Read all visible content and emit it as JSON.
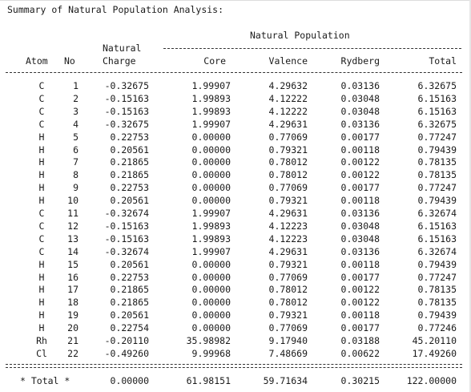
{
  "title": "Summary of Natural Population Analysis:",
  "header": {
    "natural_population": "Natural Population",
    "natural": "Natural",
    "atom": "Atom",
    "no": "No",
    "charge": "Charge",
    "core": "Core",
    "valence": "Valence",
    "rydberg": "Rydberg",
    "total": "Total"
  },
  "rows": [
    {
      "atom": "C",
      "no": "1",
      "charge": "-0.32675",
      "core": "1.99907",
      "valence": "4.29632",
      "rydberg": "0.03136",
      "total": "6.32675"
    },
    {
      "atom": "C",
      "no": "2",
      "charge": "-0.15163",
      "core": "1.99893",
      "valence": "4.12222",
      "rydberg": "0.03048",
      "total": "6.15163"
    },
    {
      "atom": "C",
      "no": "3",
      "charge": "-0.15163",
      "core": "1.99893",
      "valence": "4.12222",
      "rydberg": "0.03048",
      "total": "6.15163"
    },
    {
      "atom": "C",
      "no": "4",
      "charge": "-0.32675",
      "core": "1.99907",
      "valence": "4.29631",
      "rydberg": "0.03136",
      "total": "6.32675"
    },
    {
      "atom": "H",
      "no": "5",
      "charge": "0.22753",
      "core": "0.00000",
      "valence": "0.77069",
      "rydberg": "0.00177",
      "total": "0.77247"
    },
    {
      "atom": "H",
      "no": "6",
      "charge": "0.20561",
      "core": "0.00000",
      "valence": "0.79321",
      "rydberg": "0.00118",
      "total": "0.79439"
    },
    {
      "atom": "H",
      "no": "7",
      "charge": "0.21865",
      "core": "0.00000",
      "valence": "0.78012",
      "rydberg": "0.00122",
      "total": "0.78135"
    },
    {
      "atom": "H",
      "no": "8",
      "charge": "0.21865",
      "core": "0.00000",
      "valence": "0.78012",
      "rydberg": "0.00122",
      "total": "0.78135"
    },
    {
      "atom": "H",
      "no": "9",
      "charge": "0.22753",
      "core": "0.00000",
      "valence": "0.77069",
      "rydberg": "0.00177",
      "total": "0.77247"
    },
    {
      "atom": "H",
      "no": "10",
      "charge": "0.20561",
      "core": "0.00000",
      "valence": "0.79321",
      "rydberg": "0.00118",
      "total": "0.79439"
    },
    {
      "atom": "C",
      "no": "11",
      "charge": "-0.32674",
      "core": "1.99907",
      "valence": "4.29631",
      "rydberg": "0.03136",
      "total": "6.32674"
    },
    {
      "atom": "C",
      "no": "12",
      "charge": "-0.15163",
      "core": "1.99893",
      "valence": "4.12223",
      "rydberg": "0.03048",
      "total": "6.15163"
    },
    {
      "atom": "C",
      "no": "13",
      "charge": "-0.15163",
      "core": "1.99893",
      "valence": "4.12223",
      "rydberg": "0.03048",
      "total": "6.15163"
    },
    {
      "atom": "C",
      "no": "14",
      "charge": "-0.32674",
      "core": "1.99907",
      "valence": "4.29631",
      "rydberg": "0.03136",
      "total": "6.32674"
    },
    {
      "atom": "H",
      "no": "15",
      "charge": "0.20561",
      "core": "0.00000",
      "valence": "0.79321",
      "rydberg": "0.00118",
      "total": "0.79439"
    },
    {
      "atom": "H",
      "no": "16",
      "charge": "0.22753",
      "core": "0.00000",
      "valence": "0.77069",
      "rydberg": "0.00177",
      "total": "0.77247"
    },
    {
      "atom": "H",
      "no": "17",
      "charge": "0.21865",
      "core": "0.00000",
      "valence": "0.78012",
      "rydberg": "0.00122",
      "total": "0.78135"
    },
    {
      "atom": "H",
      "no": "18",
      "charge": "0.21865",
      "core": "0.00000",
      "valence": "0.78012",
      "rydberg": "0.00122",
      "total": "0.78135"
    },
    {
      "atom": "H",
      "no": "19",
      "charge": "0.20561",
      "core": "0.00000",
      "valence": "0.79321",
      "rydberg": "0.00118",
      "total": "0.79439"
    },
    {
      "atom": "H",
      "no": "20",
      "charge": "0.22754",
      "core": "0.00000",
      "valence": "0.77069",
      "rydberg": "0.00177",
      "total": "0.77246"
    },
    {
      "atom": "Rh",
      "no": "21",
      "charge": "-0.20110",
      "core": "35.98982",
      "valence": "9.17940",
      "rydberg": "0.03188",
      "total": "45.20110"
    },
    {
      "atom": "Cl",
      "no": "22",
      "charge": "-0.49260",
      "core": "9.99968",
      "valence": "7.48669",
      "rydberg": "0.00622",
      "total": "17.49260"
    }
  ],
  "total_row": {
    "label": "* Total *",
    "charge": "0.00000",
    "core": "61.98151",
    "valence": "59.71634",
    "rydberg": "0.30215",
    "total": "122.00000"
  },
  "colors": {
    "background": "#ffffff",
    "text": "#1a1a1a"
  }
}
